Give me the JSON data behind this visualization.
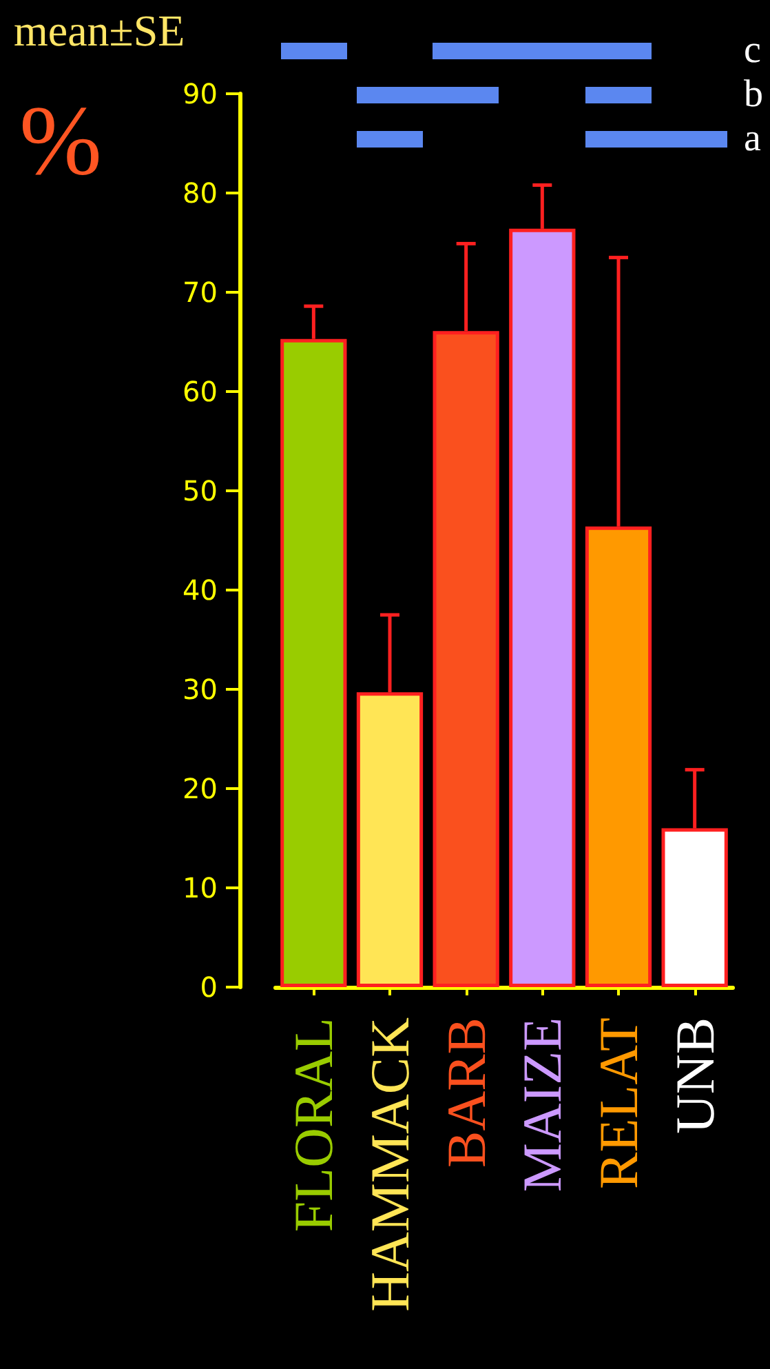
{
  "chart_data": {
    "type": "bar",
    "categories": [
      "FLORAL",
      "HAMMACK",
      "BARB",
      "MAIZE",
      "RELAT",
      "UNB"
    ],
    "values": [
      65.3,
      29.7,
      66.1,
      76.4,
      46.4,
      16.0
    ],
    "colors": [
      "#99cc00",
      "#ffe555",
      "#fa501e",
      "#cc99ff",
      "#ff9900",
      "#ffffff"
    ],
    "errors": [
      [
        65.3,
        68.6
      ],
      [
        29.7,
        37.5
      ],
      [
        66.1,
        74.9
      ],
      [
        76.4,
        80.8
      ],
      [
        46.4,
        73.5
      ],
      [
        16.0,
        21.9
      ]
    ],
    "ylabel": "%",
    "ylim": [
      0,
      90
    ],
    "yticks": [
      0,
      10,
      20,
      30,
      40,
      50,
      60,
      70,
      80,
      90
    ],
    "annotations": [
      "mean±SE",
      "c",
      "b",
      "a"
    ],
    "grid": false
  }
}
